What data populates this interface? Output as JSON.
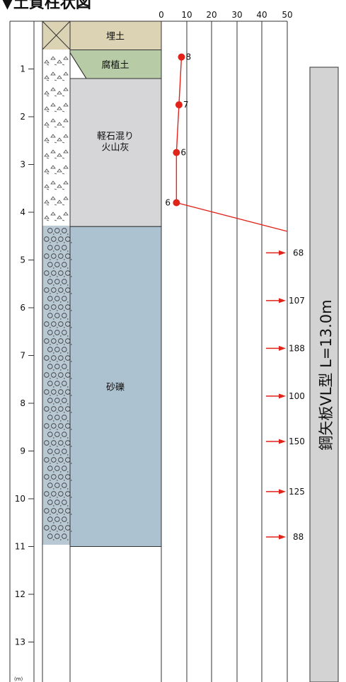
{
  "title": "▼土質柱状図",
  "depth_unit": "(m)",
  "depth_ticks": [
    "1",
    "2",
    "3",
    "4",
    "5",
    "6",
    "7",
    "8",
    "9",
    "10",
    "11",
    "12",
    "13"
  ],
  "n_axis_ticks": [
    "0",
    "10",
    "20",
    "30",
    "40",
    "50"
  ],
  "layers": [
    {
      "name": "埋土",
      "from": 0.0,
      "to": 0.6,
      "color": "#dcd3b4"
    },
    {
      "name": "腐植土",
      "from": 0.6,
      "to": 1.2,
      "color": "#b7cba6"
    },
    {
      "name": "軽石混り\n火山灰",
      "from": 1.2,
      "to": 4.3,
      "color": "#d6d6d8"
    },
    {
      "name": "砂礫",
      "from": 4.3,
      "to": 11.0,
      "color": "#adc2d1"
    }
  ],
  "spt_points": [
    {
      "depth": 0.75,
      "n": 8
    },
    {
      "depth": 1.75,
      "n": 7
    },
    {
      "depth": 2.75,
      "n": 6
    },
    {
      "depth": 3.8,
      "n": 6
    }
  ],
  "spt_over_values": [
    {
      "depth": 4.85,
      "label": "68"
    },
    {
      "depth": 5.85,
      "label": "107"
    },
    {
      "depth": 6.85,
      "label": "188"
    },
    {
      "depth": 7.85,
      "label": "100"
    },
    {
      "depth": 8.8,
      "label": "150"
    },
    {
      "depth": 9.85,
      "label": "125"
    },
    {
      "depth": 10.8,
      "label": "88"
    }
  ],
  "pile_label": "鋼矢板VL型 L=13.0m",
  "colors": {
    "spt": "#e2231a",
    "pile": "#d3d3d3",
    "grid": "#333333"
  }
}
